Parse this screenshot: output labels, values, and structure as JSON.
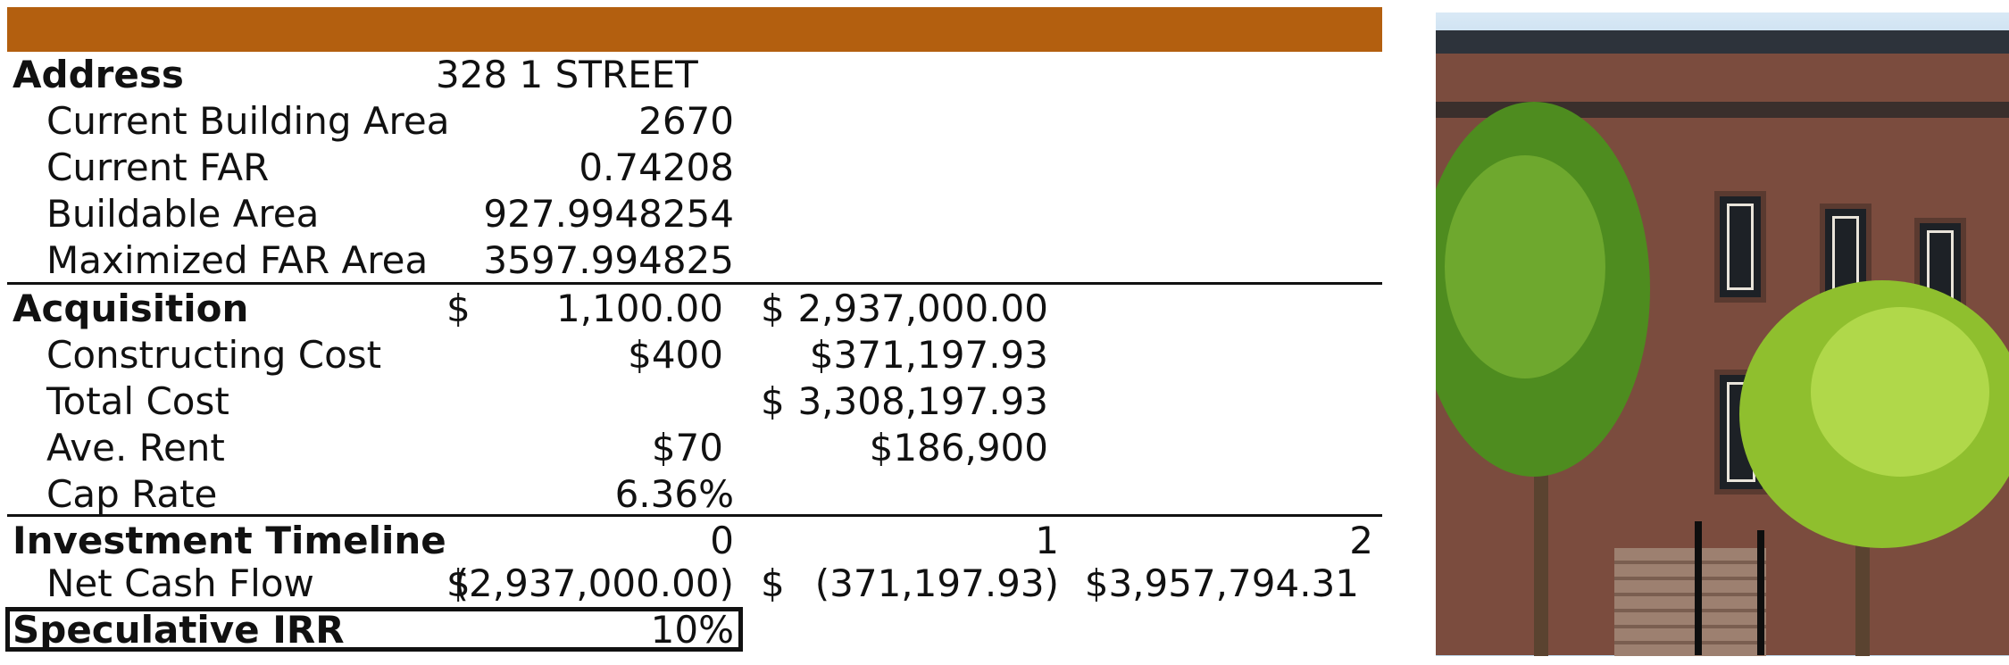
{
  "header_bar_color": "#b35f0f",
  "address": {
    "label": "Address",
    "value": "328 1 STREET"
  },
  "property": {
    "current_building_area": {
      "label": "Current Building Area",
      "value": "2670"
    },
    "current_far": {
      "label": "Current FAR",
      "value": "0.74208"
    },
    "buildable_area": {
      "label": "Buildable Area",
      "value": "927.9948254"
    },
    "maximized_far_area": {
      "label": "Maximized FAR Area",
      "value": "3597.994825"
    }
  },
  "acquisition": {
    "label": "Acquisition",
    "currency": "$",
    "per_unit": "1,100.00",
    "total_currency": "$",
    "total": "2,937,000.00"
  },
  "costs": {
    "constructing_cost": {
      "label": "Constructing Cost",
      "per_unit": "$400",
      "total": "$371,197.93"
    },
    "total_cost": {
      "label": "Total Cost",
      "currency": "$",
      "total": "3,308,197.93"
    },
    "ave_rent": {
      "label": "Ave. Rent",
      "per_unit": "$70",
      "total": "$186,900"
    },
    "cap_rate": {
      "label": "Cap Rate",
      "value": "6.36%"
    }
  },
  "timeline": {
    "label": "Investment Timeline",
    "periods": [
      "0",
      "1",
      "2"
    ],
    "net_cash_flow": {
      "label": "Net Cash Flow",
      "currency_0": "$",
      "value_0": "(2,937,000.00)",
      "currency_1": "$",
      "value_1": "(371,197.93)",
      "value_2": "$3,957,794.31"
    }
  },
  "irr": {
    "label": "Speculative IRR",
    "value": "10%"
  },
  "photo": {
    "subject": "brownstone-rowhouse-photo"
  }
}
